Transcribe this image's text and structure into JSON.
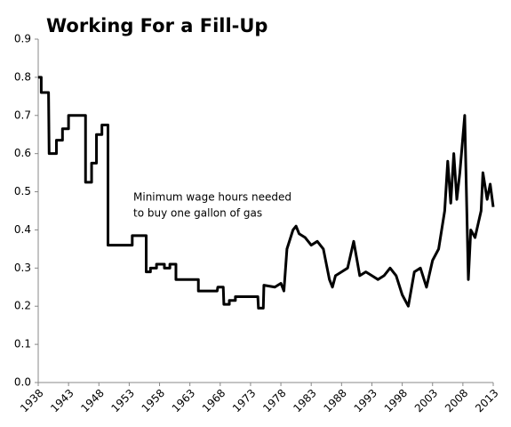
{
  "chart_data": {
    "type": "line",
    "title": "Working For a Fill-Up",
    "annotation": [
      "Minimum wage hours needed",
      "to buy one gallon of gas"
    ],
    "color": "#000000",
    "x": [
      1938,
      1938.5,
      1938.5,
      1939.7,
      1939.8,
      1941,
      1941,
      1942,
      1942,
      1943,
      1943,
      1945.8,
      1945.8,
      1946.8,
      1946.8,
      1947.6,
      1947.6,
      1948.5,
      1948.5,
      1949.5,
      1949.5,
      1953.5,
      1953.5,
      1955.8,
      1955.8,
      1956.5,
      1956.5,
      1957.5,
      1957.5,
      1958.8,
      1958.8,
      1959.7,
      1959.7,
      1960.7,
      1960.7,
      1964.4,
      1964.4,
      1967.5,
      1967.6,
      1968.5,
      1968.6,
      1969.5,
      1969.5,
      1970.5,
      1970.5,
      1974.2,
      1974.3,
      1975.1,
      1975.2,
      1977,
      1978,
      1978.5,
      1979,
      1980,
      1980.5,
      1981,
      1982,
      1983,
      1984,
      1985,
      1986,
      1986.5,
      1987,
      1988,
      1989,
      1990,
      1991,
      1992,
      1993,
      1994,
      1995,
      1996,
      1997,
      1998,
      1999,
      2000,
      2001,
      2002,
      2003,
      2004,
      2005,
      2005.5,
      2006,
      2006.5,
      2007,
      2007.5,
      2008.3,
      2008.9,
      2009.3,
      2010,
      2011,
      2011.3,
      2012,
      2012.5,
      2013
    ],
    "values": [
      0.8,
      0.8,
      0.76,
      0.76,
      0.6,
      0.6,
      0.635,
      0.635,
      0.665,
      0.665,
      0.7,
      0.7,
      0.525,
      0.525,
      0.575,
      0.575,
      0.65,
      0.65,
      0.675,
      0.675,
      0.36,
      0.36,
      0.385,
      0.385,
      0.29,
      0.29,
      0.3,
      0.3,
      0.31,
      0.31,
      0.3,
      0.3,
      0.31,
      0.31,
      0.27,
      0.27,
      0.24,
      0.24,
      0.25,
      0.25,
      0.205,
      0.205,
      0.215,
      0.215,
      0.225,
      0.225,
      0.195,
      0.195,
      0.255,
      0.25,
      0.26,
      0.24,
      0.35,
      0.4,
      0.41,
      0.39,
      0.38,
      0.36,
      0.37,
      0.35,
      0.27,
      0.25,
      0.28,
      0.29,
      0.3,
      0.37,
      0.28,
      0.29,
      0.28,
      0.27,
      0.28,
      0.3,
      0.28,
      0.23,
      0.2,
      0.29,
      0.3,
      0.25,
      0.32,
      0.35,
      0.45,
      0.58,
      0.47,
      0.6,
      0.48,
      0.55,
      0.7,
      0.27,
      0.4,
      0.38,
      0.45,
      0.55,
      0.48,
      0.52,
      0.46
    ],
    "xlim": [
      1938,
      2013
    ],
    "xticks": [
      1938,
      1943,
      1948,
      1953,
      1958,
      1963,
      1968,
      1973,
      1978,
      1983,
      1988,
      1993,
      1998,
      2003,
      2008,
      2013
    ],
    "ylim": [
      0,
      0.9
    ],
    "yticks": [
      {
        "value": 0,
        "label": "0.0"
      },
      0.1,
      0.2,
      0.3,
      0.4,
      0.5,
      0.6,
      0.7,
      0.8,
      0.9
    ]
  }
}
